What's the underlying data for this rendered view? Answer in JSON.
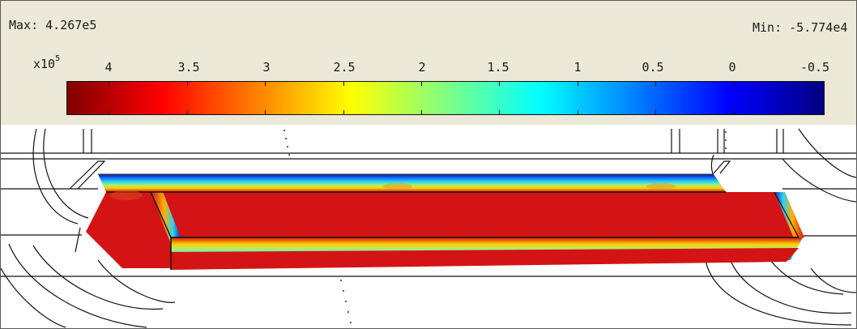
{
  "legend": {
    "max_label": "Max: 4.267e5",
    "min_label": "Min: -5.774e4",
    "exponent_base": "x10",
    "exponent_power": "5",
    "tick_labels": [
      "4",
      "3.5",
      "3",
      "2.5",
      "2",
      "1.5",
      "1",
      "0.5",
      "0",
      "-0.5"
    ],
    "tick_values": [
      4,
      3.5,
      3,
      2.5,
      2,
      1.5,
      1,
      0.5,
      0,
      -0.5
    ],
    "range": {
      "max": 4.267,
      "min": -0.5774
    }
  },
  "colormap": {
    "name": "jet",
    "stops": [
      "#800000",
      "#ff0000",
      "#ff8000",
      "#ffff00",
      "#80ff80",
      "#00ffff",
      "#0080ff",
      "#0000ff",
      "#000080"
    ]
  },
  "colors": {
    "panel_background": "#ece9d8",
    "solid_fill": "#d41414",
    "edge_dark": "#0a1a9a",
    "edge_cyan": "#20c8f0",
    "wireframe": "#111111"
  }
}
